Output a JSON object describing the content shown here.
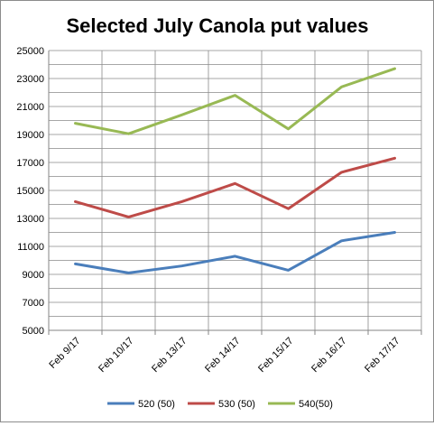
{
  "chart_data": {
    "type": "line",
    "title": "Selected July Canola put values",
    "xlabel": "",
    "ylabel": "",
    "categories": [
      "Feb 9/17",
      "Feb 10/17",
      "Feb 13/17",
      "Feb 14/17",
      "Feb 15/17",
      "Feb 16/17",
      "Feb 17/17"
    ],
    "ylim": [
      5000,
      25000
    ],
    "yticks": [
      "5000",
      "7000",
      "9000",
      "11000",
      "13000",
      "15000",
      "17000",
      "19000",
      "21000",
      "23000",
      "25000"
    ],
    "minor_grid_step": 1000,
    "grid": true,
    "legend_position": "bottom",
    "series": [
      {
        "name": "520 (50)",
        "color": "#4a7ebb",
        "values": [
          9750,
          9100,
          9600,
          10300,
          9300,
          11400,
          12000
        ]
      },
      {
        "name": "530 (50)",
        "color": "#be4b48",
        "values": [
          14200,
          13100,
          14200,
          15500,
          13700,
          16300,
          17300
        ]
      },
      {
        "name": "540(50)",
        "color": "#98b954",
        "values": [
          19800,
          19050,
          20400,
          21800,
          19400,
          22400,
          23700
        ]
      }
    ]
  }
}
